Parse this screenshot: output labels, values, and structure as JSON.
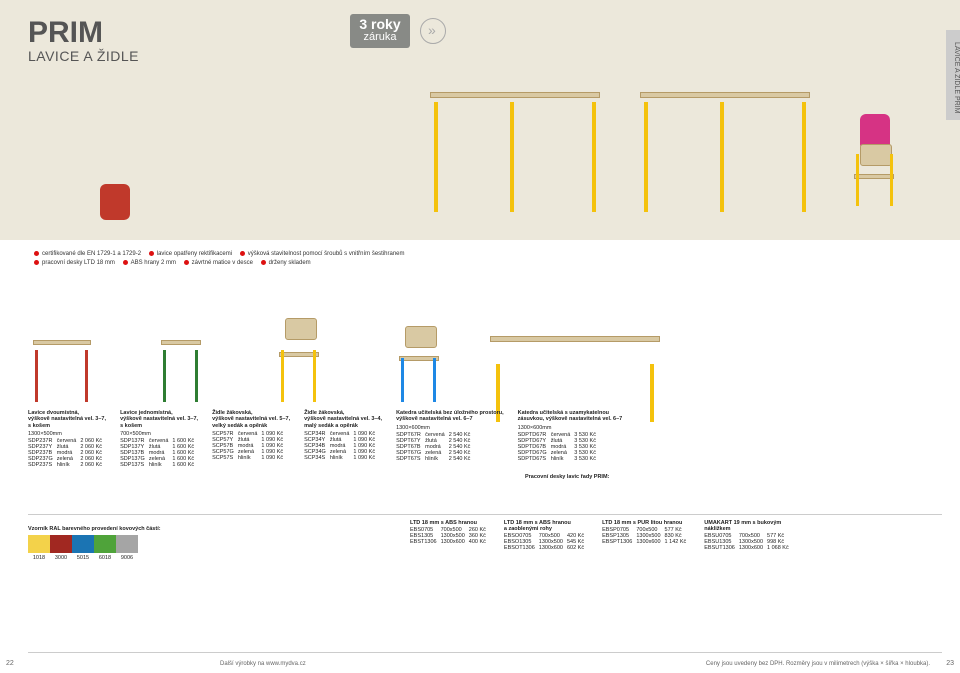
{
  "hero": {
    "title": "PRIM",
    "subtitle": "LAVICE A ŽIDLE",
    "warranty_top": "3 roky",
    "warranty_bottom": "záruka",
    "side_tab": "LAVICE A ŽIDLE PRIM"
  },
  "bullets": [
    "certifikované dle EN 1729-1 a 1729-2",
    "lavice opatřeny rektifikacemi",
    "výšková stavitelnost pomocí šroubů s vnitřním šestihranem",
    "pracovní desky LTD 18 mm",
    "ABS hrany 2 mm",
    "závrtné matice v desce",
    "drženy skladem"
  ],
  "thumbs_palette": {
    "red": "#c0392b",
    "green": "#2e7d32",
    "yellow": "#f4c20d",
    "blue": "#1e88e5",
    "wood": "#d9c9a3"
  },
  "tables": {
    "lavice_dvou": {
      "title": "Lavice dvoumístná,\nvýškově nastavitelná vel. 3–7,\ns košem",
      "dim": "1300×500mm",
      "rows": [
        [
          "SDP237R",
          "červená",
          "2 060 Kč"
        ],
        [
          "SDP237Y",
          "žlutá",
          "2 060 Kč"
        ],
        [
          "SDP237B",
          "modrá",
          "2 060 Kč"
        ],
        [
          "SDP237G",
          "zelená",
          "2 060 Kč"
        ],
        [
          "SDP237S",
          "hliník",
          "2 060 Kč"
        ]
      ]
    },
    "lavice_jedno": {
      "title": "Lavice jednomístná,\nvýškově nastavitelná vel. 3–7,\ns košem",
      "dim": "700×500mm",
      "rows": [
        [
          "SDP137R",
          "červená",
          "1 600 Kč"
        ],
        [
          "SDP137Y",
          "žlutá",
          "1 600 Kč"
        ],
        [
          "SDP137B",
          "modrá",
          "1 600 Kč"
        ],
        [
          "SDP137G",
          "zelená",
          "1 600 Kč"
        ],
        [
          "SDP137S",
          "hliník",
          "1 600 Kč"
        ]
      ]
    },
    "zidle57": {
      "title": "Židle žákovská,\nvýškově nastavitelná vel. 5–7,\nvelký sedák a opěrák",
      "rows": [
        [
          "SCP57R",
          "červená",
          "1 090 Kč"
        ],
        [
          "SCP57Y",
          "žlutá",
          "1 090 Kč"
        ],
        [
          "SCP57B",
          "modrá",
          "1 090 Kč"
        ],
        [
          "SCP57G",
          "zelená",
          "1 090 Kč"
        ],
        [
          "SCP57S",
          "hliník",
          "1 090 Kč"
        ]
      ]
    },
    "zidle34": {
      "title": "Židle žákovská,\nvýškově nastavitelná vel. 3–4,\nmalý sedák a opěrák",
      "rows": [
        [
          "SCP34R",
          "červená",
          "1 090 Kč"
        ],
        [
          "SCP34Y",
          "žlutá",
          "1 090 Kč"
        ],
        [
          "SCP34B",
          "modrá",
          "1 090 Kč"
        ],
        [
          "SCP34G",
          "zelená",
          "1 090 Kč"
        ],
        [
          "SCP34S",
          "hliník",
          "1 090 Kč"
        ]
      ]
    },
    "katedra1": {
      "title": "Katedra učitelská bez úložného prostoru,\nvýškově nastavitelná vel. 6–7",
      "dim": "1300×600mm",
      "rows": [
        [
          "SDPT67R",
          "červená",
          "2 540 Kč"
        ],
        [
          "SDPT67Y",
          "žlutá",
          "2 540 Kč"
        ],
        [
          "SDPT67B",
          "modrá",
          "2 540 Kč"
        ],
        [
          "SDPT67G",
          "zelená",
          "2 540 Kč"
        ],
        [
          "SDPT67S",
          "hliník",
          "2 540 Kč"
        ]
      ]
    },
    "katedra2": {
      "title": "Katedra učitelská s uzamykatelnou\nzásuvkou, výškově nastavitelná vel. 6–7",
      "dim": "1300×600mm",
      "rows": [
        [
          "SDPTD67R",
          "červená",
          "3 530 Kč"
        ],
        [
          "SDPTD67Y",
          "žlutá",
          "3 530 Kč"
        ],
        [
          "SDPTD67B",
          "modrá",
          "3 530 Kč"
        ],
        [
          "SDPTD67G",
          "zelená",
          "3 530 Kč"
        ],
        [
          "SDPTD67S",
          "hliník",
          "3 530 Kč"
        ]
      ]
    }
  },
  "pdesky_label": "Pracovní desky lavic řady PRIM:",
  "swatches": {
    "label": "Vzorník RAL barevného provedení kovových částí:",
    "items": [
      {
        "code": "1018",
        "hex": "#f3d24a"
      },
      {
        "code": "3000",
        "hex": "#a12821"
      },
      {
        "code": "5015",
        "hex": "#1b74b3"
      },
      {
        "code": "6018",
        "hex": "#4fa33a"
      },
      {
        "code": "9006",
        "hex": "#a5a5a5"
      }
    ]
  },
  "bottom_tables": {
    "t1": {
      "title": "LTD 18 mm s ABS hranou",
      "rows": [
        [
          "EBS0705",
          "700x500",
          "260 Kč"
        ],
        [
          "EBS1305",
          "1300x500",
          "360 Kč"
        ],
        [
          "EBST1306",
          "1300x600",
          "400 Kč"
        ]
      ]
    },
    "t2": {
      "title": "LTD 18 mm s ABS hranou\na zaoblenými rohy",
      "rows": [
        [
          "EBSO0705",
          "700x500",
          "420 Kč"
        ],
        [
          "EBSO1305",
          "1300x500",
          "545 Kč"
        ],
        [
          "EBSOT1306",
          "1300x600",
          "602 Kč"
        ]
      ]
    },
    "t3": {
      "title": "LTD 18 mm s PUR litou hranou",
      "rows": [
        [
          "EBSP0705",
          "700x500",
          "577 Kč"
        ],
        [
          "EBSP1305",
          "1300x500",
          "830 Kč"
        ],
        [
          "EBSPT1306",
          "1300x600",
          "1 142 Kč"
        ]
      ]
    },
    "t4": {
      "title": "UMAKART 19 mm s bukovým\nnákližkem",
      "rows": [
        [
          "EBSU0705",
          "700x500",
          "577 Kč"
        ],
        [
          "EBSU1305",
          "1300x500",
          "998 Kč"
        ],
        [
          "EBSUT1306",
          "1300x600",
          "1 068 Kč"
        ]
      ]
    }
  },
  "footer": {
    "page_left": "22",
    "mid": "Další výrobky na www.mydva.cz",
    "right": "Ceny jsou uvedeny bez DPH. Rozměry jsou v milimetrech (výška × šířka × hloubka).",
    "page_right": "23"
  }
}
